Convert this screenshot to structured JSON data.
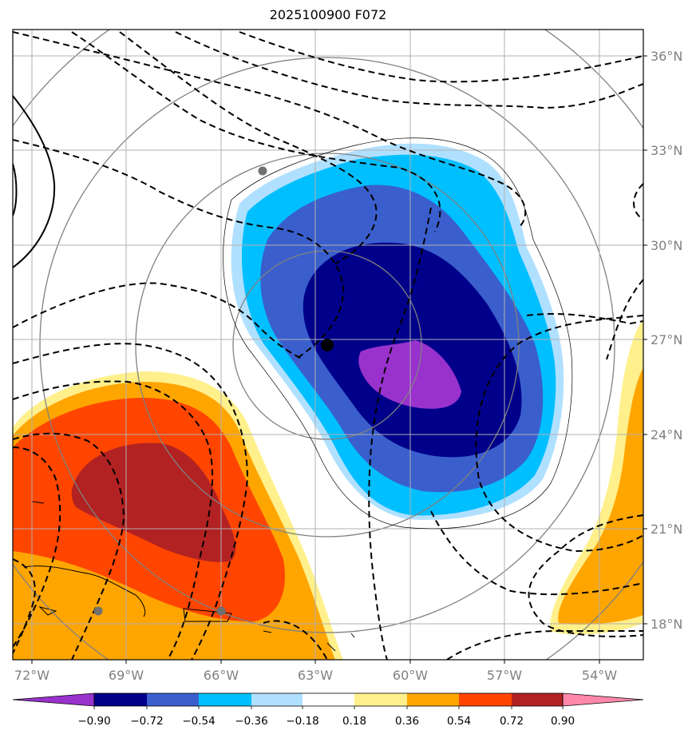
{
  "title": "2025100900 F072",
  "lon_labels": [
    "72°W",
    "69°W",
    "66°W",
    "63°W",
    "60°W",
    "57°W",
    "54°W"
  ],
  "lat_labels": [
    "36°N",
    "33°N",
    "30°N",
    "27°N",
    "24°N",
    "21°N",
    "18°N"
  ],
  "colorbar": {
    "ticks": [
      "−0.90",
      "−0.72",
      "−0.54",
      "−0.36",
      "−0.18",
      "0.18",
      "0.36",
      "0.54",
      "0.72",
      "0.90"
    ],
    "colors": [
      "#9932cc",
      "#00008b",
      "#3a5fcd",
      "#00bfff",
      "#b0e0ff",
      "#ffffff",
      "#fff08c",
      "#ffa500",
      "#ff4500",
      "#b22222",
      "#ff88aa"
    ]
  },
  "colors": {
    "neg1": "#b0e0ff",
    "neg2": "#00bfff",
    "neg3": "#3a5fcd",
    "neg4": "#00008b",
    "neg5": "#9932cc",
    "pos1": "#fff08c",
    "pos2": "#ffa500",
    "pos3": "#ff4500",
    "pos4": "#b22222"
  },
  "markers": {
    "center": "black-dot",
    "stations": [
      "gray-dot",
      "gray-dot",
      "gray-dot"
    ]
  }
}
